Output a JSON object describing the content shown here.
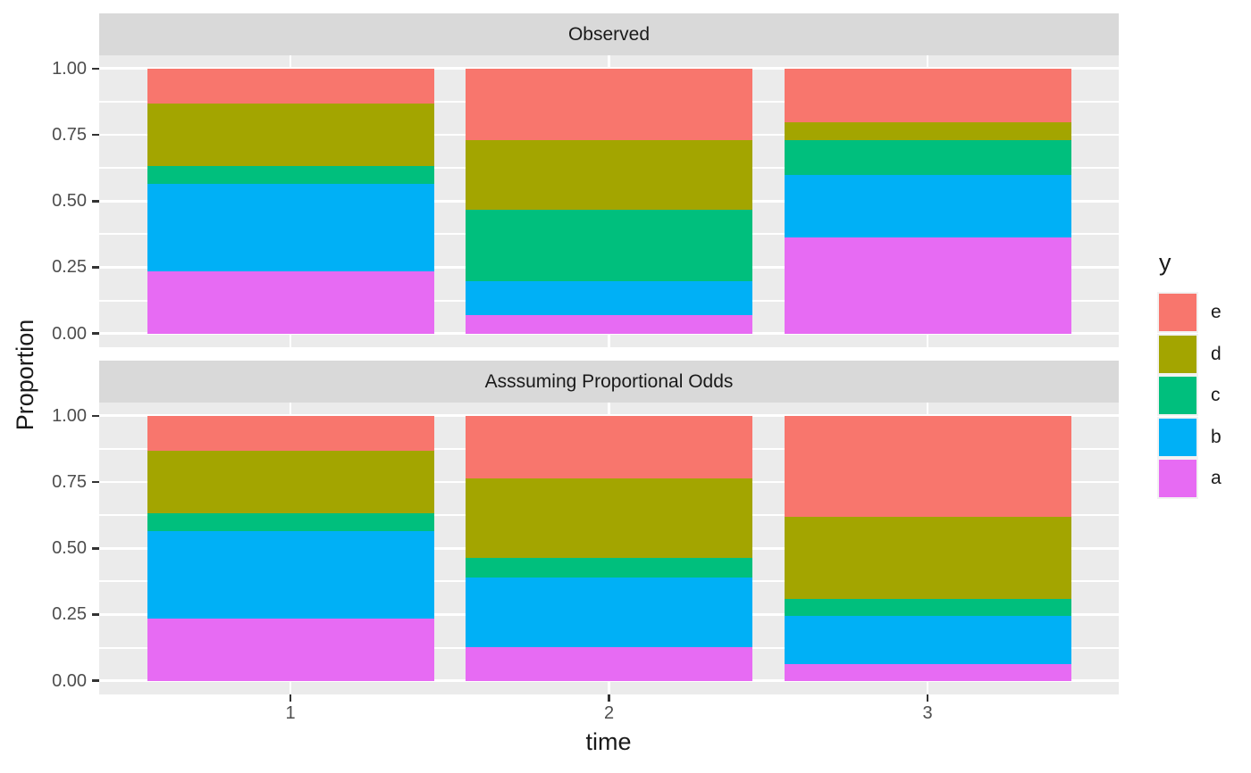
{
  "figure": {
    "background": "#FFFFFF",
    "panel_background": "#EBEBEB",
    "strip_background": "#D9D9D9",
    "gridline_color": "#FFFFFF",
    "axis_text_color": "#4D4D4D",
    "tick_mark_color": "#333333"
  },
  "chart_data": {
    "type": "bar",
    "stacked": true,
    "orientation": "vertical",
    "xlabel": "time",
    "ylabel": "Proportion",
    "categories": [
      "1",
      "2",
      "3"
    ],
    "y_ticks": [
      "1.00",
      "0.75",
      "0.50",
      "0.25",
      "0.00"
    ],
    "y_tick_values": [
      1,
      0.75,
      0.5,
      0.25,
      0
    ],
    "ylim": [
      0,
      1
    ],
    "grid": "major-and-minor-horizontal-white-on-gray",
    "stack_order_bottom_to_top": [
      "a",
      "b",
      "c",
      "d",
      "e"
    ],
    "colors": {
      "a": "#E76BF3",
      "b": "#00B0F6",
      "c": "#00BF7D",
      "d": "#A3A500",
      "e": "#F8766D"
    },
    "facets": [
      {
        "title": "Observed",
        "bars": [
          {
            "time": "1",
            "a": 0.235,
            "b": 0.33,
            "c": 0.07,
            "d": 0.235,
            "e": 0.13
          },
          {
            "time": "2",
            "a": 0.07,
            "b": 0.13,
            "c": 0.27,
            "d": 0.26,
            "e": 0.27
          },
          {
            "time": "3",
            "a": 0.365,
            "b": 0.235,
            "c": 0.13,
            "d": 0.07,
            "e": 0.2
          }
        ]
      },
      {
        "title": "Asssuming Proportional Odds",
        "bars": [
          {
            "time": "1",
            "a": 0.235,
            "b": 0.33,
            "c": 0.07,
            "d": 0.235,
            "e": 0.13
          },
          {
            "time": "2",
            "a": 0.13,
            "b": 0.26,
            "c": 0.075,
            "d": 0.3,
            "e": 0.235
          },
          {
            "time": "3",
            "a": 0.065,
            "b": 0.18,
            "c": 0.065,
            "d": 0.31,
            "e": 0.38
          }
        ]
      }
    ],
    "legend": {
      "title": "y",
      "position": "right",
      "entries": [
        {
          "label": "e",
          "color": "#F8766D"
        },
        {
          "label": "d",
          "color": "#A3A500"
        },
        {
          "label": "c",
          "color": "#00BF7D"
        },
        {
          "label": "b",
          "color": "#00B0F6"
        },
        {
          "label": "a",
          "color": "#E76BF3"
        }
      ]
    }
  }
}
